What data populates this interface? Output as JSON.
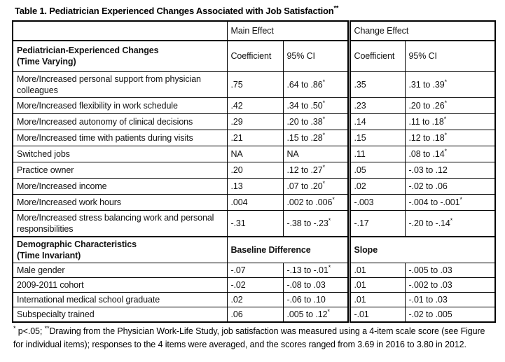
{
  "title": {
    "text": "Table 1. Pediatrician Experienced Changes Associated with Job Satisfaction",
    "star": "**"
  },
  "table": {
    "top_header": {
      "blank": "",
      "main_effect": "Main Effect",
      "change_effect": "Change Effect"
    },
    "sections": [
      {
        "header": {
          "label_line1": "Pediatrician-Experienced Changes",
          "label_line2": "(Time Varying)",
          "col1": "Coefficient",
          "col2": "95% CI",
          "col3": "Coefficient",
          "col4": "95% CI"
        },
        "rows": [
          {
            "label": "More/Increased personal support from physician colleagues",
            "main_coef": ".75",
            "main_ci": ".64 to .86",
            "main_ci_star": "*",
            "chg_coef": ".35",
            "chg_ci": ".31 to .39",
            "chg_ci_star": "*"
          },
          {
            "label": "More/Increased flexibility in work schedule",
            "main_coef": ".42",
            "main_ci": ".34 to .50",
            "main_ci_star": "*",
            "chg_coef": ".23",
            "chg_ci": ".20 to .26",
            "chg_ci_star": "*"
          },
          {
            "label": "More/Increased autonomy of clinical decisions",
            "main_coef": ".29",
            "main_ci": ".20 to .38",
            "main_ci_star": "*",
            "chg_coef": ".14",
            "chg_ci": ".11 to .18",
            "chg_ci_star": "*"
          },
          {
            "label": "More/Increased time with patients during visits",
            "main_coef": ".21",
            "main_ci": ".15 to .28",
            "main_ci_star": "*",
            "chg_coef": ".15",
            "chg_ci": ".12 to .18",
            "chg_ci_star": "*"
          },
          {
            "label": "Switched jobs",
            "main_coef": "NA",
            "main_ci": "NA",
            "main_ci_star": "",
            "chg_coef": ".11",
            "chg_ci": ".08 to .14",
            "chg_ci_star": "*"
          },
          {
            "label": "Practice owner",
            "main_coef": ".20",
            "main_ci": ".12 to .27",
            "main_ci_star": "*",
            "chg_coef": ".05",
            "chg_ci": "-.03 to .12",
            "chg_ci_star": ""
          },
          {
            "label": "More/Increased income",
            "main_coef": ".13",
            "main_ci": ".07 to .20",
            "main_ci_star": "*",
            "chg_coef": ".02",
            "chg_ci": "-.02 to .06",
            "chg_ci_star": ""
          },
          {
            "label": "More/Increased work hours",
            "main_coef": ".004",
            "main_ci": ".002 to .006",
            "main_ci_star": "*",
            "chg_coef": "-.003",
            "chg_ci": "-.004 to -.001",
            "chg_ci_star": "*"
          },
          {
            "label": "More/Increased stress balancing work and personal responsibilities",
            "main_coef": "-.31",
            "main_ci": "-.38 to -.23",
            "main_ci_star": "*",
            "chg_coef": "-.17",
            "chg_ci": "-.20 to -.14",
            "chg_ci_star": "*"
          }
        ]
      },
      {
        "header": {
          "label_line1": "Demographic Characteristics",
          "label_line2": "(Time Invariant)",
          "left_span": "Baseline Difference",
          "right_span": "Slope"
        },
        "rows": [
          {
            "label": "Male gender",
            "main_coef": "-.07",
            "main_ci": "-.13 to -.01",
            "main_ci_star": "*",
            "chg_coef": ".01",
            "chg_ci": "-.005 to .03",
            "chg_ci_star": ""
          },
          {
            "label": "2009-2011 cohort",
            "main_coef": "-.02",
            "main_ci": "-.08 to .03",
            "main_ci_star": "",
            "chg_coef": ".01",
            "chg_ci": "-.002 to .03",
            "chg_ci_star": ""
          },
          {
            "label": "International medical school graduate",
            "main_coef": ".02",
            "main_ci": "-.06 to .10",
            "main_ci_star": "",
            "chg_coef": ".01",
            "chg_ci": "-.01 to .03",
            "chg_ci_star": ""
          },
          {
            "label": "Subspecialty trained",
            "main_coef": ".06",
            "main_ci": ".005 to .12",
            "main_ci_star": "*",
            "chg_coef": "-.01",
            "chg_ci": "-.02 to .005",
            "chg_ci_star": ""
          }
        ]
      }
    ]
  },
  "footnote": {
    "sig_star": "*",
    "sig_text": " p<.05; ",
    "note_star": "**",
    "note_text": "Drawing from the Physician Work-Life Study, job satisfaction was measured using a 4-item scale score (see Figure for individual items); responses to the 4 items were averaged, and the scores ranged from 3.69 in 2016 to 3.80 in 2012."
  }
}
